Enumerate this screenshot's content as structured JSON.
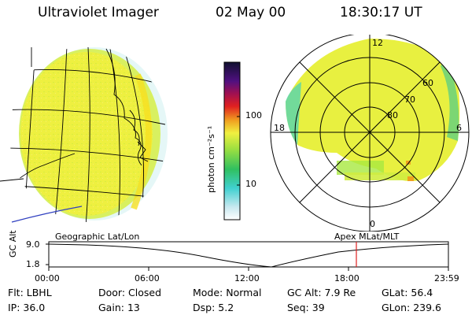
{
  "header": {
    "instrument": "Ultraviolet Imager",
    "date": "02 May 00",
    "time": "18:30:17 UT"
  },
  "colorbar": {
    "label": "photon cm⁻²s⁻¹",
    "ticks": [
      "100",
      "10"
    ],
    "scale": "log"
  },
  "polar": {
    "mlt_labels": {
      "top": "12",
      "left": "18",
      "right": "6",
      "bottom": "0"
    },
    "lat_labels": [
      "60",
      "70",
      "80"
    ]
  },
  "panels": {
    "left_caption": "Geographic Lat/Lon",
    "right_caption": "Apex MLat/MLT"
  },
  "altitude_plot": {
    "ylabel": "GC Alt",
    "yticks": [
      "9.0",
      "1.8"
    ],
    "xticks": [
      "00:00",
      "06:00",
      "12:00",
      "18:00",
      "23:59"
    ],
    "current_time_marker": "18:30"
  },
  "info": [
    {
      "label": "Flt:",
      "value": "LBHL"
    },
    {
      "label": "Door:",
      "value": "Closed"
    },
    {
      "label": "Mode:",
      "value": "Normal"
    },
    {
      "label": "GC Alt:",
      "value": "7.9 Re"
    },
    {
      "label": "GLat:",
      "value": "56.4"
    },
    {
      "label": "IP:",
      "value": "36.0"
    },
    {
      "label": "Gain:",
      "value": "13"
    },
    {
      "label": "Dsp:",
      "value": "5.2"
    },
    {
      "label": "Seq:",
      "value": "39"
    },
    {
      "label": "GLon:",
      "value": "239.6"
    }
  ],
  "colors": {
    "emission_main": "#f0f040",
    "emission_edge": "#c8ec3c",
    "patch_green": "#3cc850",
    "cyan": "#40d8d8",
    "marker_red": "#e02020"
  }
}
